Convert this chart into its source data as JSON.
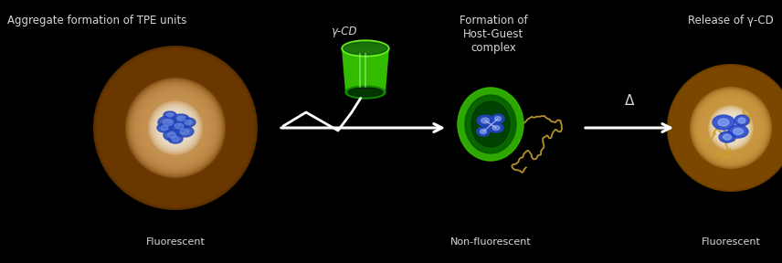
{
  "bg_color": "#000000",
  "fig_width": 8.56,
  "fig_height": 2.88,
  "texts": {
    "title1": "Aggregate formation of TPE units",
    "label_fluorescent1": "Fluorescent",
    "label_gamma_cd": "γ-CD",
    "label_formation": "Formation of\nHost-Guest\ncomplex",
    "label_nonfluorescent": "Non-fluorescent",
    "label_release": "Release of γ-CD",
    "label_fluorescent2": "Fluorescent",
    "label_delta": "Δ"
  },
  "text_color": "#d8d8d8",
  "arrow_color": "#ffffff",
  "polymer_color": "#c8a030",
  "glow1_color": "#7b5010",
  "glow1b_color": "#ffffff",
  "glow3_color": "#9b6820",
  "cd_green": "#33cc00",
  "cd_green_dark": "#116600",
  "cd_green_light": "#88ff44",
  "tpe_blue": "#3355dd",
  "tpe_light": "#aabbff",
  "complex_green": "#22aa00",
  "complex_dark": "#003300"
}
